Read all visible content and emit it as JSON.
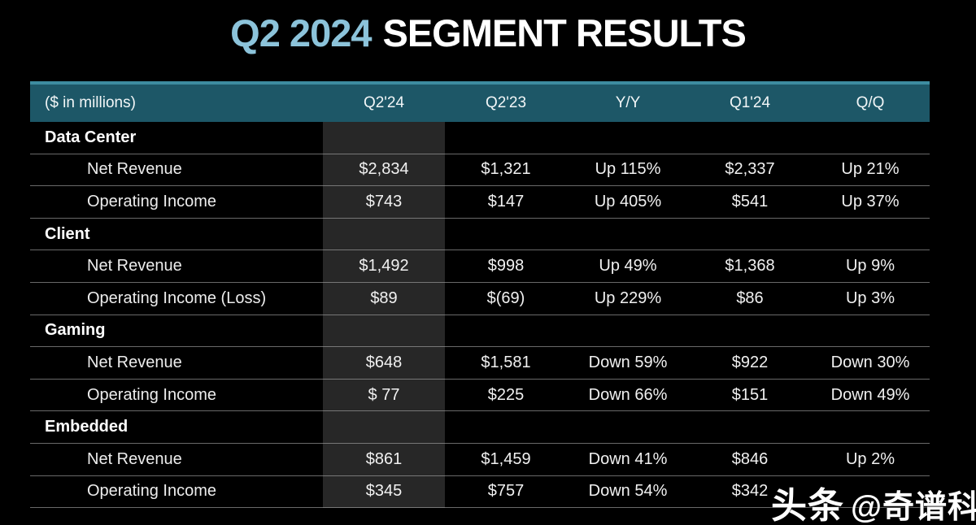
{
  "title": {
    "highlight": "Q2 2024",
    "rest": "SEGMENT RESULTS"
  },
  "colors": {
    "background": "#000000",
    "title_blue": "#8cc3da",
    "header_teal": "#1d5767",
    "header_strip": "#3d8ca0",
    "highlight_column": "#272727"
  },
  "watermark": {
    "prefix": "头条",
    "handle": "@奇谱科技"
  },
  "chart_data": {
    "type": "table",
    "title": "Q2 2024 SEGMENT RESULTS",
    "unit_label": "($ in millions)",
    "columns": [
      "Q2'24",
      "Q2'23",
      "Y/Y",
      "Q1'24",
      "Q/Q"
    ],
    "highlighted_column": "Q2'24",
    "sections": [
      {
        "name": "Data Center",
        "rows": [
          {
            "label": "Net Revenue",
            "values": [
              "$2,834",
              "$1,321",
              "Up 115%",
              "$2,337",
              "Up 21%"
            ]
          },
          {
            "label": "Operating Income",
            "values": [
              "$743",
              "$147",
              "Up 405%",
              "$541",
              "Up 37%"
            ]
          }
        ]
      },
      {
        "name": "Client",
        "rows": [
          {
            "label": "Net Revenue",
            "values": [
              "$1,492",
              "$998",
              "Up 49%",
              "$1,368",
              "Up 9%"
            ]
          },
          {
            "label": "Operating Income (Loss)",
            "values": [
              "$89",
              "$(69)",
              "Up 229%",
              "$86",
              "Up 3%"
            ]
          }
        ]
      },
      {
        "name": "Gaming",
        "rows": [
          {
            "label": "Net Revenue",
            "values": [
              "$648",
              "$1,581",
              "Down 59%",
              "$922",
              "Down 30%"
            ]
          },
          {
            "label": "Operating Income",
            "values": [
              "$ 77",
              "$225",
              "Down 66%",
              "$151",
              "Down 49%"
            ]
          }
        ]
      },
      {
        "name": "Embedded",
        "rows": [
          {
            "label": "Net Revenue",
            "values": [
              "$861",
              "$1,459",
              "Down 41%",
              "$846",
              "Up 2%"
            ]
          },
          {
            "label": "Operating Income",
            "values": [
              "$345",
              "$757",
              "Down 54%",
              "$342",
              ""
            ]
          }
        ]
      }
    ]
  }
}
